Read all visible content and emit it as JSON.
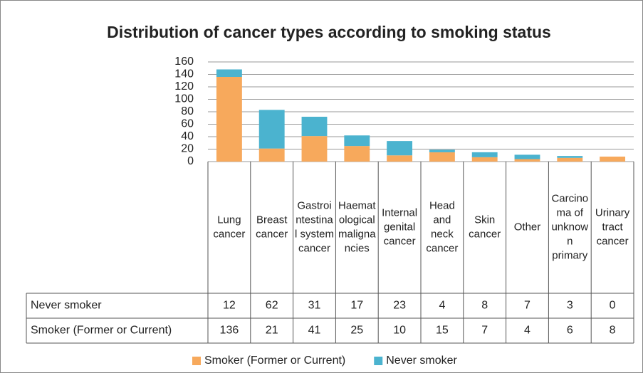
{
  "chart_data": {
    "type": "stacked_bar",
    "title": "Distribution of cancer types according to smoking status",
    "categories": [
      "Lung cancer",
      "Breast cancer",
      "Gastrointestinal system cancer",
      "Haematological malignancies",
      "Internal genital cancer",
      "Head and neck cancer",
      "Skin cancer",
      "Other",
      "Carcinoma of unknown primary",
      "Urinary tract cancer"
    ],
    "series": [
      {
        "name": "Smoker (Former or Current)",
        "color": "#f7a95c",
        "values": [
          136,
          21,
          41,
          25,
          10,
          15,
          7,
          4,
          6,
          8
        ]
      },
      {
        "name": "Never smoker",
        "color": "#4bb3cf",
        "values": [
          12,
          62,
          31,
          17,
          23,
          4,
          8,
          7,
          3,
          0
        ]
      }
    ],
    "ylim": [
      0,
      160
    ],
    "yticks": [
      0,
      20,
      40,
      60,
      80,
      100,
      120,
      140,
      160
    ],
    "grid": true,
    "legend": "bottom"
  }
}
